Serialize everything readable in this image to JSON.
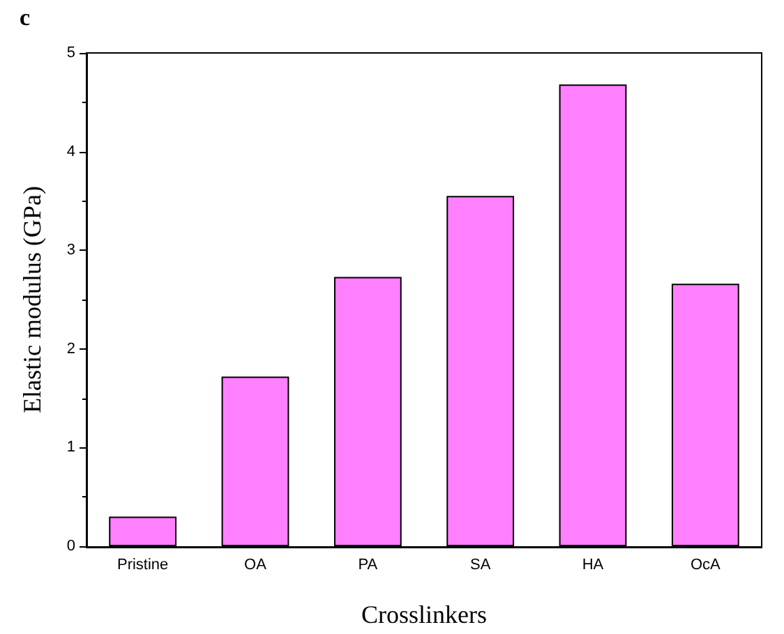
{
  "chart_data": {
    "type": "bar",
    "annotations": [
      "c"
    ],
    "xlabel": "Crosslinkers",
    "ylabel": "Elastic modulus (GPa)",
    "categories": [
      "Pristine",
      "OA",
      "PA",
      "SA",
      "HA",
      "OcA"
    ],
    "values": [
      0.3,
      1.72,
      2.73,
      3.55,
      4.68,
      2.66
    ],
    "color": "#ff80ff",
    "ylim": [
      0,
      5
    ],
    "yticks": [
      0,
      1,
      2,
      3,
      4,
      5
    ],
    "grid": false
  }
}
